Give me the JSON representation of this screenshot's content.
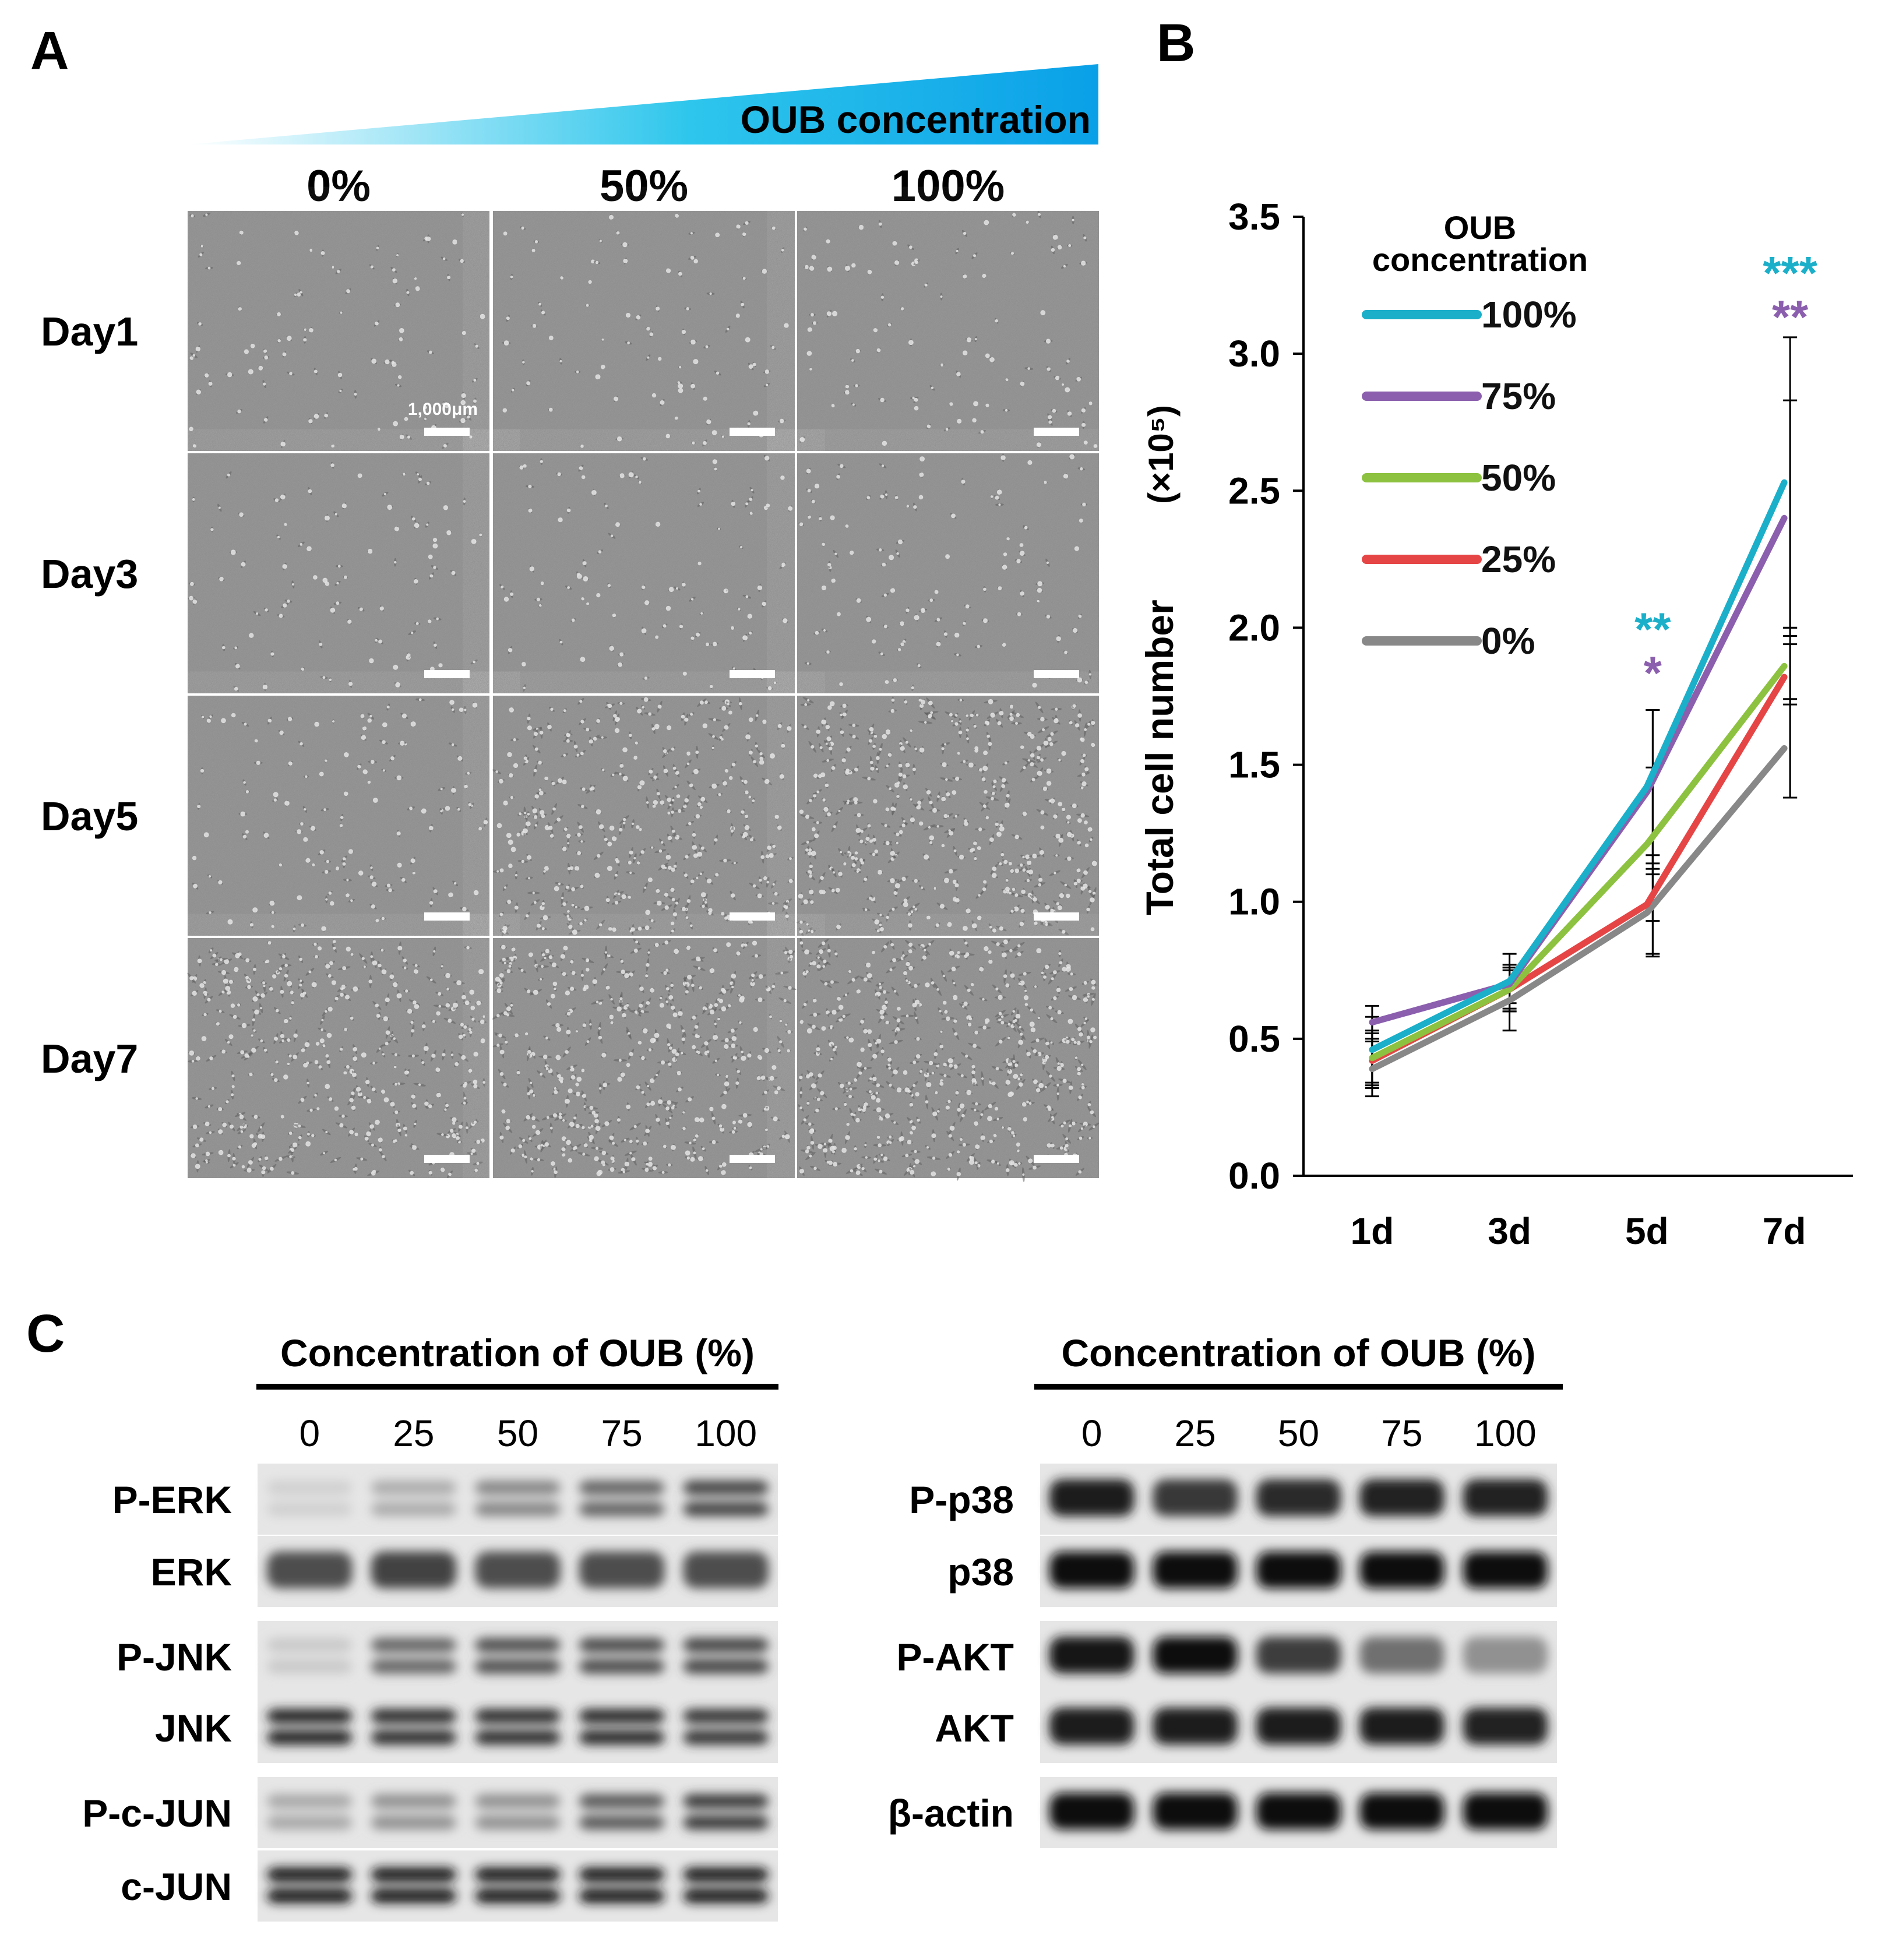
{
  "colors": {
    "c100": "#1BAFC9",
    "c75": "#8B5FAE",
    "c50": "#8CC23F",
    "c25": "#E64546",
    "c0": "#888888",
    "gradient_end": "#0AA0E8",
    "micro_bg": "#8C8C8C"
  },
  "panel_a": {
    "letter": "A",
    "gradient_label": "OUB concentration",
    "columns": [
      "0%",
      "50%",
      "100%"
    ],
    "rows": [
      "Day1",
      "Day3",
      "Day5",
      "Day7"
    ],
    "scale_bar_label": "1,000μm",
    "density": [
      [
        0.12,
        0.1,
        0.12
      ],
      [
        0.1,
        0.12,
        0.14
      ],
      [
        0.18,
        0.6,
        0.75
      ],
      [
        0.65,
        0.75,
        0.85
      ]
    ]
  },
  "panel_b": {
    "letter": "B",
    "legend_title": [
      "OUB",
      "concentration"
    ],
    "y_unit": "(×10⁵)"
  },
  "chart_data": {
    "type": "line",
    "title": "",
    "xlabel": "",
    "ylabel": "Total cell number",
    "ylim": [
      0,
      3.5
    ],
    "yticks": [
      "0.0",
      "0.5",
      "1.0",
      "1.5",
      "2.0",
      "2.5",
      "3.0",
      "3.5"
    ],
    "categories": [
      "1d",
      "3d",
      "5d",
      "7d"
    ],
    "series": [
      {
        "name": "100%",
        "color_key": "c100",
        "values": [
          0.46,
          0.71,
          1.42,
          2.53
        ],
        "err_hi": [
          0.12,
          0.1,
          0.28,
          0.53
        ],
        "err_lo": [
          0.12,
          0.1,
          0.28,
          0.53
        ]
      },
      {
        "name": "75%",
        "color_key": "c75",
        "values": [
          0.56,
          0.7,
          1.4,
          2.4
        ],
        "err_hi": [
          0.06,
          0.07,
          0.3,
          0.43
        ],
        "err_lo": [
          0.06,
          0.07,
          0.3,
          0.43
        ]
      },
      {
        "name": "50%",
        "color_key": "c50",
        "values": [
          0.43,
          0.68,
          1.21,
          1.86
        ],
        "err_hi": [
          0.1,
          0.08,
          0.28,
          0.14
        ],
        "err_lo": [
          0.1,
          0.08,
          0.28,
          0.14
        ]
      },
      {
        "name": "25%",
        "color_key": "c25",
        "values": [
          0.42,
          0.68,
          0.99,
          1.82
        ],
        "err_hi": [
          0.1,
          0.08,
          0.18,
          0.12
        ],
        "err_lo": [
          0.1,
          0.08,
          0.18,
          0.44
        ]
      },
      {
        "name": "0%",
        "color_key": "c0",
        "values": [
          0.39,
          0.64,
          0.96,
          1.56
        ],
        "err_hi": [
          0.1,
          0.11,
          0.16,
          0.18
        ],
        "err_lo": [
          0.1,
          0.11,
          0.16,
          0.18
        ]
      }
    ],
    "annotations": [
      {
        "text": "**",
        "x": "5d",
        "y": 2.0,
        "color_key": "c100"
      },
      {
        "text": "*",
        "x": "5d",
        "y": 1.84,
        "color_key": "c75"
      },
      {
        "text": "***",
        "x": "7d",
        "y": 3.3,
        "color_key": "c100"
      },
      {
        "text": "**",
        "x": "7d",
        "y": 3.14,
        "color_key": "c75"
      }
    ]
  },
  "panel_c": {
    "letter": "C",
    "left": {
      "header": "Concentration of OUB (%)",
      "lanes": [
        "0",
        "25",
        "50",
        "75",
        "100"
      ],
      "blots": [
        {
          "label": "P-ERK",
          "intensity": [
            0.12,
            0.28,
            0.45,
            0.6,
            0.75
          ],
          "bands": 2
        },
        {
          "label": "ERK",
          "intensity": [
            0.7,
            0.75,
            0.7,
            0.7,
            0.7
          ],
          "bands": 1
        },
        {
          "label": "P-JNK",
          "intensity": [
            0.15,
            0.6,
            0.7,
            0.72,
            0.75
          ],
          "bands": 2
        },
        {
          "label": "JNK",
          "intensity": [
            0.9,
            0.85,
            0.85,
            0.88,
            0.82
          ],
          "bands": 2
        },
        {
          "label": "P-c-JUN",
          "intensity": [
            0.3,
            0.4,
            0.4,
            0.65,
            0.8
          ],
          "bands": 2
        },
        {
          "label": "c-JUN",
          "intensity": [
            0.95,
            0.95,
            0.95,
            0.95,
            0.95
          ],
          "bands": 2
        }
      ]
    },
    "right": {
      "header": "Concentration of OUB (%)",
      "lanes": [
        "0",
        "25",
        "50",
        "75",
        "100"
      ],
      "blots": [
        {
          "label": "P-p38",
          "intensity": [
            0.92,
            0.8,
            0.85,
            0.9,
            0.9
          ],
          "bands": 1
        },
        {
          "label": "p38",
          "intensity": [
            0.97,
            0.97,
            0.97,
            0.97,
            0.97
          ],
          "bands": 1
        },
        {
          "label": "P-AKT",
          "intensity": [
            0.95,
            0.97,
            0.78,
            0.55,
            0.4
          ],
          "bands": 1
        },
        {
          "label": "AKT",
          "intensity": [
            0.92,
            0.92,
            0.92,
            0.92,
            0.9
          ],
          "bands": 1
        },
        {
          "label": "β-actin",
          "intensity": [
            0.97,
            0.97,
            0.97,
            0.97,
            0.97
          ],
          "bands": 1
        }
      ]
    }
  }
}
